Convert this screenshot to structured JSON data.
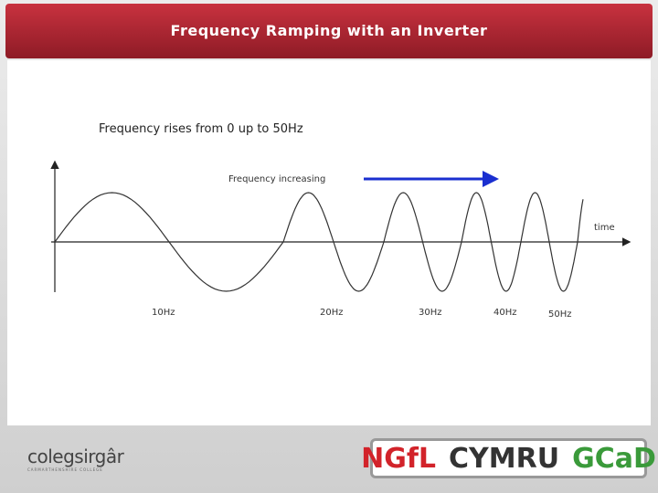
{
  "header": {
    "title": "Frequency Ramping with an Inverter"
  },
  "body": {
    "text": "Frequency rises from 0 up to 50Hz"
  },
  "diagram": {
    "arrow_label": "Frequency increasing",
    "axis_label": "time",
    "frequency_labels": [
      "10Hz",
      "20Hz",
      "30Hz",
      "40Hz",
      "50Hz"
    ]
  },
  "footer": {
    "college_name": "colegsirgâr",
    "college_subtitle": "CARMARTHENSHIRE COLLEGE",
    "logo_parts": [
      "NGfL",
      "CYMRU",
      "GCaD"
    ]
  }
}
